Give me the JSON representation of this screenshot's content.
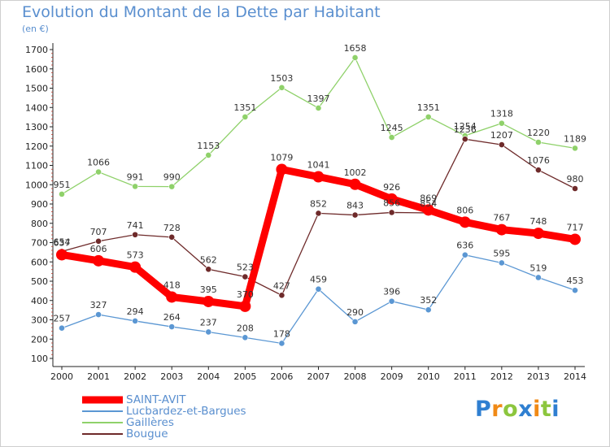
{
  "header": {
    "title": "Evolution du Montant de la Dette par Habitant",
    "subtitle": "(en €)"
  },
  "logo": {
    "text": "Proxiti",
    "letters": [
      {
        "ch": "P",
        "color": "#2f7fd1"
      },
      {
        "ch": "r",
        "color": "#f08a16"
      },
      {
        "ch": "o",
        "color": "#8cc63e"
      },
      {
        "ch": "x",
        "color": "#2f7fd1"
      },
      {
        "ch": "i",
        "color": "#f08a16"
      },
      {
        "ch": "t",
        "color": "#8cc63e"
      },
      {
        "ch": "i",
        "color": "#2f7fd1"
      }
    ]
  },
  "chart_data": {
    "type": "line",
    "title": "Evolution du Montant de la Dette par Habitant",
    "subtitle": "(en €)",
    "x": [
      "2000",
      "2001",
      "2002",
      "2003",
      "2004",
      "2005",
      "2006",
      "2007",
      "2008",
      "2009",
      "2010",
      "2011",
      "2012",
      "2013",
      "2014"
    ],
    "ylim": [
      100,
      1700
    ],
    "yticks": [
      100,
      200,
      300,
      400,
      500,
      600,
      700,
      800,
      900,
      1000,
      1100,
      1200,
      1300,
      1400,
      1500,
      1600,
      1700
    ],
    "grid": false,
    "legend_position": "bottom-left",
    "series": [
      {
        "name": "SAINT-AVIT",
        "color": "#ff0000",
        "emphasis": true,
        "values": [
          637,
          606,
          573,
          418,
          395,
          370,
          1079,
          1041,
          1002,
          926,
          869,
          806,
          767,
          748,
          717
        ]
      },
      {
        "name": "Lucbardez-et-Bargues",
        "color": "#5b97d3",
        "emphasis": false,
        "values": [
          257,
          327,
          294,
          264,
          237,
          208,
          178,
          459,
          290,
          396,
          352,
          636,
          595,
          519,
          453
        ]
      },
      {
        "name": "Gaillères",
        "color": "#8fd16a",
        "emphasis": false,
        "values": [
          951,
          1066,
          991,
          990,
          1153,
          1351,
          1503,
          1397,
          1658,
          1245,
          1351,
          1254,
          1318,
          1220,
          1189
        ]
      },
      {
        "name": "Bougue",
        "color": "#6e2a2a",
        "emphasis": false,
        "values": [
          654,
          707,
          741,
          728,
          562,
          523,
          427,
          852,
          843,
          856,
          854,
          1236,
          1207,
          1076,
          980
        ]
      }
    ]
  }
}
